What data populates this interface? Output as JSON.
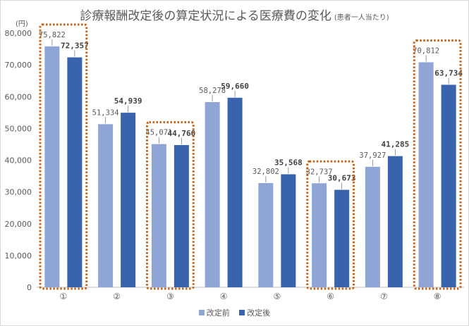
{
  "chart_data": {
    "type": "bar",
    "title": "診療報酬改定後の算定状況による医療費の変化",
    "subtitle": "(患者一人当たり)",
    "ylabel": "(円)",
    "ylim": [
      0,
      80000
    ],
    "yticks": [
      "0",
      "10,000",
      "20,000",
      "30,000",
      "40,000",
      "50,000",
      "60,000",
      "70,000",
      "80,000"
    ],
    "grid": true,
    "legend_position": "bottom",
    "categories": [
      "①",
      "②",
      "③",
      "④",
      "⑤",
      "⑥",
      "⑦",
      "⑧"
    ],
    "series": [
      {
        "name": "改定前",
        "color": "#8ea5d6",
        "values": [
          75822,
          51334,
          45071,
          58278,
          32802,
          32737,
          37927,
          70812
        ],
        "labels": [
          "75,822",
          "51,334",
          "45,071",
          "58,278",
          "32,802",
          "32,737",
          "37,927",
          "70,812"
        ]
      },
      {
        "name": "改定後",
        "color": "#3a63ad",
        "values": [
          72357,
          54939,
          44760,
          59660,
          35568,
          30673,
          41285,
          63734
        ],
        "labels": [
          "72,357",
          "54,939",
          "44,760",
          "59,660",
          "35,568",
          "30,673",
          "41,285",
          "63,734"
        ]
      }
    ],
    "highlighted_categories": [
      "①",
      "③",
      "⑥",
      "⑧"
    ],
    "highlight_color": "#c0651f"
  }
}
